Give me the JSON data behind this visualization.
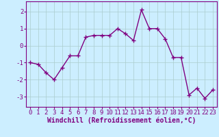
{
  "x": [
    0,
    1,
    2,
    3,
    4,
    5,
    6,
    7,
    8,
    9,
    10,
    11,
    12,
    13,
    14,
    15,
    16,
    17,
    18,
    19,
    20,
    21,
    22,
    23
  ],
  "y": [
    -1.0,
    -1.1,
    -1.6,
    -2.0,
    -1.3,
    -0.6,
    -0.6,
    0.5,
    0.6,
    0.6,
    0.6,
    1.0,
    0.7,
    0.3,
    2.1,
    1.0,
    1.0,
    0.4,
    -0.7,
    -0.7,
    -2.9,
    -2.5,
    -3.1,
    -2.6
  ],
  "line_color": "#800080",
  "marker": "+",
  "marker_size": 4,
  "bg_color": "#cceeff",
  "grid_color": "#aacccc",
  "xlabel": "Windchill (Refroidissement éolien,°C)",
  "xlabel_color": "#800080",
  "ylim": [
    -3.6,
    2.6
  ],
  "xlim": [
    -0.5,
    23.5
  ],
  "yticks": [
    -3,
    -2,
    -1,
    0,
    1,
    2
  ],
  "xticks": [
    0,
    1,
    2,
    3,
    4,
    5,
    6,
    7,
    8,
    9,
    10,
    11,
    12,
    13,
    14,
    15,
    16,
    17,
    18,
    19,
    20,
    21,
    22,
    23
  ],
  "tick_color": "#800080",
  "spine_color": "#800080",
  "font_size": 6.5,
  "label_font_size": 7.0,
  "line_width": 1.0
}
